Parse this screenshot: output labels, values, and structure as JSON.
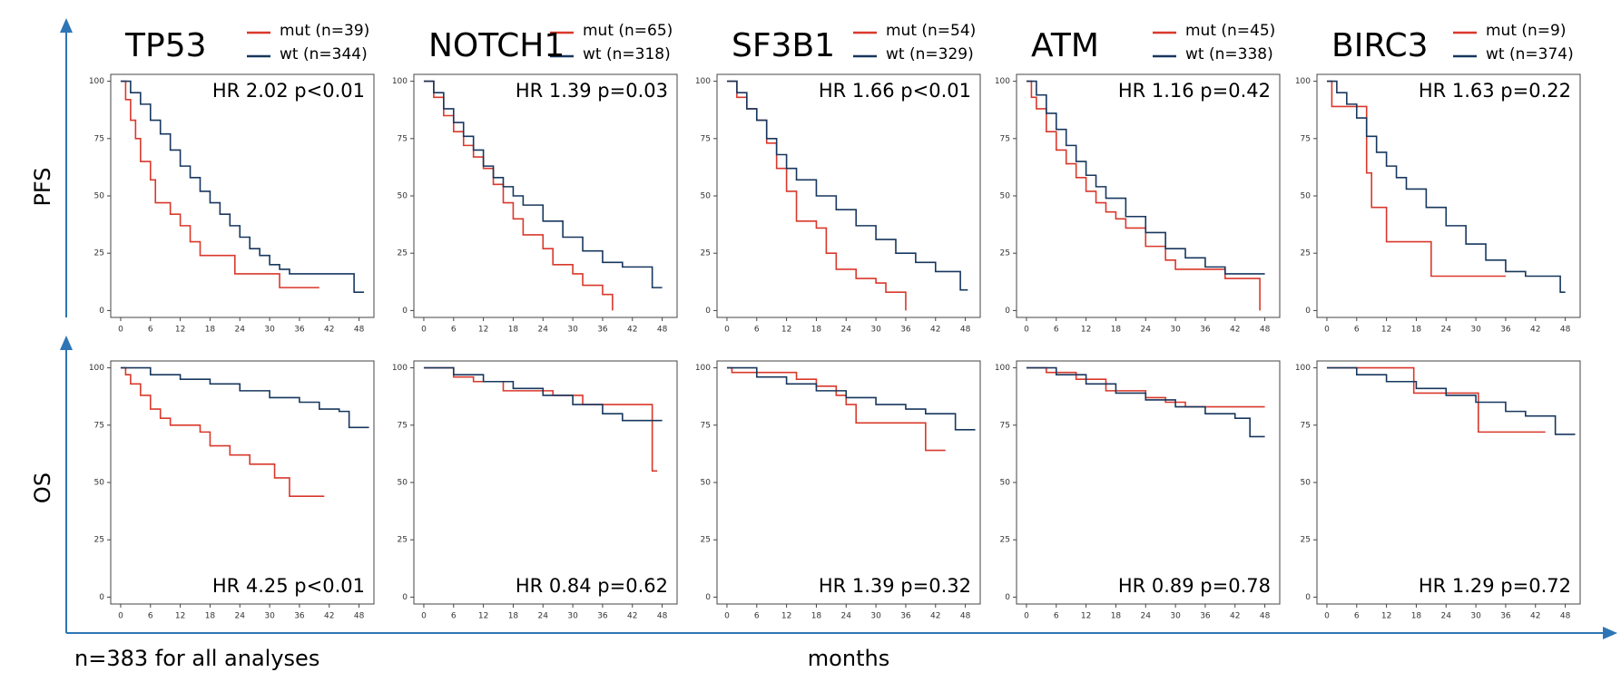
{
  "row_labels": [
    "PFS",
    "OS"
  ],
  "footnote": "n=383 for all analyses",
  "x_label": "months",
  "chart_data": [
    {
      "type": "line",
      "step": true,
      "title": "TP53",
      "annotation": "HR 2.02 p<0.01",
      "xlim": [
        -2,
        51
      ],
      "ylim": [
        -3,
        103
      ],
      "xticks": [
        0,
        6,
        12,
        18,
        24,
        30,
        36,
        42,
        48
      ],
      "yticks": [
        0,
        25,
        50,
        75,
        100
      ],
      "series": [
        {
          "name": "mut (n=39)",
          "color": "#d9382b",
          "x": [
            0,
            1,
            2,
            3,
            4,
            6,
            7,
            10,
            12,
            14,
            16,
            23,
            32,
            40
          ],
          "values": [
            100,
            92,
            83,
            75,
            65,
            57,
            47,
            42,
            37,
            30,
            24,
            16,
            10,
            10
          ]
        },
        {
          "name": "wt (n=344)",
          "color": "#17375e",
          "x": [
            0,
            2,
            4,
            6,
            8,
            10,
            12,
            14,
            16,
            18,
            20,
            22,
            24,
            26,
            28,
            30,
            32,
            34,
            47,
            49
          ],
          "values": [
            100,
            95,
            90,
            83,
            77,
            70,
            63,
            58,
            52,
            47,
            42,
            37,
            32,
            27,
            24,
            20,
            18,
            16,
            8,
            8
          ]
        }
      ]
    },
    {
      "type": "line",
      "step": true,
      "title": "NOTCH1",
      "annotation": "HR 1.39 p=0.03",
      "xlim": [
        -2,
        51
      ],
      "ylim": [
        -3,
        103
      ],
      "xticks": [
        0,
        6,
        12,
        18,
        24,
        30,
        36,
        42,
        48
      ],
      "yticks": [
        0,
        25,
        50,
        75,
        100
      ],
      "series": [
        {
          "name": "mut (n=65)",
          "color": "#d9382b",
          "x": [
            0,
            2,
            4,
            6,
            8,
            10,
            12,
            14,
            16,
            18,
            20,
            24,
            26,
            30,
            32,
            36,
            38
          ],
          "values": [
            100,
            93,
            85,
            78,
            72,
            67,
            62,
            55,
            47,
            40,
            33,
            27,
            20,
            16,
            11,
            7,
            0
          ]
        },
        {
          "name": "wt (n=318)",
          "color": "#17375e",
          "x": [
            0,
            2,
            4,
            6,
            8,
            10,
            12,
            14,
            16,
            18,
            20,
            24,
            28,
            32,
            36,
            40,
            46,
            48
          ],
          "values": [
            100,
            95,
            88,
            82,
            76,
            70,
            63,
            58,
            54,
            50,
            46,
            39,
            32,
            26,
            21,
            19,
            10,
            10
          ]
        }
      ]
    },
    {
      "type": "line",
      "step": true,
      "title": "SF3B1",
      "annotation": "HR 1.66 p<0.01",
      "xlim": [
        -2,
        51
      ],
      "ylim": [
        -3,
        103
      ],
      "xticks": [
        0,
        6,
        12,
        18,
        24,
        30,
        36,
        42,
        48
      ],
      "yticks": [
        0,
        25,
        50,
        75,
        100
      ],
      "series": [
        {
          "name": "mut (n=54)",
          "color": "#d9382b",
          "x": [
            0,
            2,
            4,
            6,
            8,
            10,
            12,
            14,
            18,
            20,
            22,
            26,
            30,
            32,
            36
          ],
          "values": [
            100,
            93,
            88,
            83,
            73,
            62,
            52,
            39,
            36,
            25,
            18,
            14,
            12,
            8,
            0
          ]
        },
        {
          "name": "wt (n=329)",
          "color": "#17375e",
          "x": [
            0,
            2,
            4,
            6,
            8,
            10,
            12,
            14,
            18,
            22,
            26,
            30,
            34,
            38,
            42,
            47,
            48.5
          ],
          "values": [
            100,
            95,
            88,
            83,
            75,
            68,
            62,
            57,
            50,
            44,
            37,
            31,
            25,
            21,
            17,
            9,
            9
          ]
        }
      ]
    },
    {
      "type": "line",
      "step": true,
      "title": "ATM",
      "annotation": "HR 1.16 p=0.42",
      "xlim": [
        -2,
        51
      ],
      "ylim": [
        -3,
        103
      ],
      "xticks": [
        0,
        6,
        12,
        18,
        24,
        30,
        36,
        42,
        48
      ],
      "yticks": [
        0,
        25,
        50,
        75,
        100
      ],
      "series": [
        {
          "name": "mut (n=45)",
          "color": "#d9382b",
          "x": [
            0,
            1,
            2,
            4,
            6,
            8,
            10,
            12,
            14,
            16,
            18,
            20,
            24,
            28,
            30,
            40,
            47
          ],
          "values": [
            100,
            93,
            88,
            78,
            70,
            64,
            58,
            52,
            47,
            43,
            40,
            36,
            28,
            22,
            18,
            14,
            0
          ]
        },
        {
          "name": "wt (n=338)",
          "color": "#17375e",
          "x": [
            0,
            2,
            4,
            6,
            8,
            10,
            12,
            14,
            16,
            20,
            24,
            28,
            32,
            36,
            40,
            48
          ],
          "values": [
            100,
            94,
            86,
            79,
            72,
            65,
            59,
            54,
            49,
            41,
            34,
            27,
            23,
            19,
            16,
            16
          ]
        }
      ]
    },
    {
      "type": "line",
      "step": true,
      "title": "BIRC3",
      "annotation": "HR 1.63 p=0.22",
      "xlim": [
        -2,
        51
      ],
      "ylim": [
        -3,
        103
      ],
      "xticks": [
        0,
        6,
        12,
        18,
        24,
        30,
        36,
        42,
        48
      ],
      "yticks": [
        0,
        25,
        50,
        75,
        100
      ],
      "series": [
        {
          "name": "mut (n=9)",
          "color": "#d9382b",
          "x": [
            0,
            1,
            8,
            9,
            12,
            21,
            36
          ],
          "values": [
            100,
            89,
            60,
            45,
            30,
            15,
            15
          ]
        },
        {
          "name": "wt (n=374)",
          "color": "#17375e",
          "x": [
            0,
            2,
            4,
            6,
            8,
            10,
            12,
            14,
            16,
            20,
            24,
            28,
            32,
            36,
            40,
            47,
            48
          ],
          "values": [
            100,
            95,
            90,
            84,
            76,
            69,
            63,
            58,
            53,
            45,
            37,
            29,
            22,
            17,
            15,
            8,
            8
          ]
        }
      ]
    },
    {
      "type": "line",
      "step": true,
      "annotation": "HR 4.25 p<0.01",
      "xlim": [
        -2,
        51
      ],
      "ylim": [
        -3,
        103
      ],
      "xticks": [
        0,
        6,
        12,
        18,
        24,
        30,
        36,
        42,
        48
      ],
      "yticks": [
        0,
        25,
        50,
        75,
        100
      ],
      "series": [
        {
          "color": "#d9382b",
          "x": [
            0,
            1,
            2,
            4,
            6,
            8,
            10,
            16,
            18,
            22,
            26,
            31,
            34,
            41
          ],
          "values": [
            100,
            97,
            93,
            88,
            82,
            78,
            75,
            72,
            66,
            62,
            58,
            52,
            44,
            44
          ]
        },
        {
          "color": "#17375e",
          "x": [
            0,
            6,
            12,
            18,
            24,
            30,
            36,
            40,
            44,
            46,
            50
          ],
          "values": [
            100,
            97,
            95,
            93,
            90,
            87,
            85,
            82,
            81,
            74,
            74
          ]
        }
      ]
    },
    {
      "type": "line",
      "step": true,
      "annotation": "HR 0.84 p=0.62",
      "xlim": [
        -2,
        51
      ],
      "ylim": [
        -3,
        103
      ],
      "xticks": [
        0,
        6,
        12,
        18,
        24,
        30,
        36,
        42,
        48
      ],
      "yticks": [
        0,
        25,
        50,
        75,
        100
      ],
      "series": [
        {
          "color": "#d9382b",
          "x": [
            0,
            6,
            10,
            16,
            26,
            32,
            46,
            47
          ],
          "values": [
            100,
            96,
            94,
            90,
            88,
            84,
            55,
            55
          ]
        },
        {
          "color": "#17375e",
          "x": [
            0,
            6,
            12,
            18,
            24,
            30,
            36,
            40,
            48
          ],
          "values": [
            100,
            97,
            94,
            91,
            88,
            84,
            80,
            77,
            77
          ]
        }
      ]
    },
    {
      "type": "line",
      "step": true,
      "annotation": "HR 1.39 p=0.32",
      "xlim": [
        -2,
        51
      ],
      "ylim": [
        -3,
        103
      ],
      "xticks": [
        0,
        6,
        12,
        18,
        24,
        30,
        36,
        42,
        48
      ],
      "yticks": [
        0,
        25,
        50,
        75,
        100
      ],
      "series": [
        {
          "color": "#d9382b",
          "x": [
            0,
            1,
            14,
            18,
            22,
            24,
            26,
            40,
            44
          ],
          "values": [
            100,
            98,
            95,
            92,
            88,
            84,
            76,
            64,
            64
          ]
        },
        {
          "color": "#17375e",
          "x": [
            0,
            6,
            12,
            18,
            24,
            30,
            36,
            40,
            46,
            50
          ],
          "values": [
            100,
            96,
            93,
            90,
            87,
            84,
            82,
            80,
            73,
            73
          ]
        }
      ]
    },
    {
      "type": "line",
      "step": true,
      "annotation": "HR 0.89 p=0.78",
      "xlim": [
        -2,
        51
      ],
      "ylim": [
        -3,
        103
      ],
      "xticks": [
        0,
        6,
        12,
        18,
        24,
        30,
        36,
        42,
        48
      ],
      "yticks": [
        0,
        25,
        50,
        75,
        100
      ],
      "series": [
        {
          "color": "#d9382b",
          "x": [
            0,
            4,
            10,
            16,
            24,
            28,
            32,
            48
          ],
          "values": [
            100,
            98,
            95,
            90,
            87,
            85,
            83,
            83
          ]
        },
        {
          "color": "#17375e",
          "x": [
            0,
            6,
            12,
            18,
            24,
            30,
            36,
            42,
            45,
            48
          ],
          "values": [
            100,
            97,
            93,
            89,
            86,
            83,
            80,
            78,
            70,
            70
          ]
        }
      ]
    },
    {
      "type": "line",
      "step": true,
      "annotation": "HR 1.29 p=0.72",
      "xlim": [
        -2,
        51
      ],
      "ylim": [
        -3,
        103
      ],
      "xticks": [
        0,
        6,
        12,
        18,
        24,
        30,
        36,
        42,
        48
      ],
      "yticks": [
        0,
        25,
        50,
        75,
        100
      ],
      "series": [
        {
          "color": "#d9382b",
          "x": [
            0,
            17.5,
            30.5,
            44
          ],
          "values": [
            100,
            89,
            72,
            72
          ]
        },
        {
          "color": "#17375e",
          "x": [
            0,
            6,
            12,
            18,
            24,
            30,
            36,
            40,
            46,
            50
          ],
          "values": [
            100,
            97,
            94,
            91,
            88,
            85,
            81,
            79,
            71,
            71
          ]
        }
      ]
    }
  ]
}
